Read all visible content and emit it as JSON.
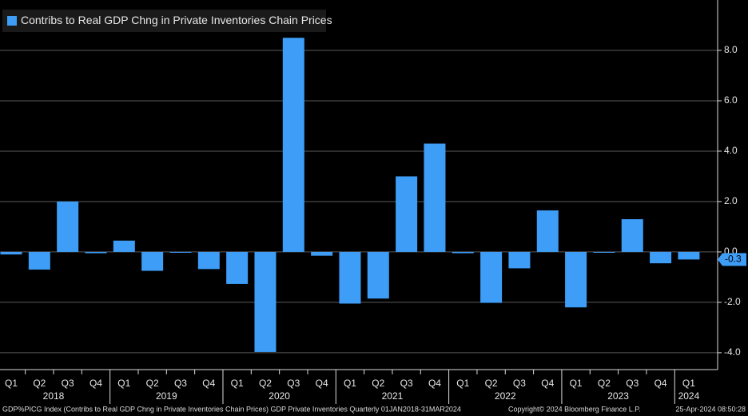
{
  "chart_data": {
    "type": "bar",
    "legend": "Contribs to Real GDP Chng in Private Inventories Chain Prices",
    "color": "#3d9df7",
    "categories": [
      "Q1",
      "Q2",
      "Q3",
      "Q4",
      "Q1",
      "Q2",
      "Q3",
      "Q4",
      "Q1",
      "Q2",
      "Q3",
      "Q4",
      "Q1",
      "Q2",
      "Q3",
      "Q4",
      "Q1",
      "Q2",
      "Q3",
      "Q4",
      "Q1",
      "Q2",
      "Q3",
      "Q4",
      "Q1"
    ],
    "year_labels": [
      "2018",
      "2019",
      "2020",
      "2021",
      "2022",
      "2023",
      "2024"
    ],
    "values": [
      -0.1,
      -0.7,
      2.0,
      -0.05,
      0.45,
      -0.75,
      -0.03,
      -0.68,
      -1.27,
      -3.97,
      8.5,
      -0.15,
      -2.05,
      -1.85,
      3.0,
      4.3,
      -0.05,
      -2.02,
      -0.65,
      1.65,
      -2.2,
      -0.02,
      1.3,
      -0.45,
      -0.3
    ],
    "last_value_label": "-0.3",
    "ylim": [
      -4.67,
      10
    ],
    "yticks": [
      {
        "value": -4,
        "label": "-4.0"
      },
      {
        "value": -2,
        "label": "-2.0"
      },
      {
        "value": 0,
        "label": "0.0"
      },
      {
        "value": 2,
        "label": "2.0"
      },
      {
        "value": 4,
        "label": "4.0"
      },
      {
        "value": 6,
        "label": "6.0"
      },
      {
        "value": 8,
        "label": "8.0"
      }
    ],
    "grid": true,
    "footer": {
      "source": "GDP%PICG Index (Contribs to Real GDP Chng in Private Inventories Chain Prices) GDP Private Inventories  Quarterly 01JAN2018-31MAR2024",
      "copyright": "Copyright© 2024 Bloomberg Finance L.P.",
      "timestamp": "25-Apr-2024 08:50:28"
    }
  }
}
